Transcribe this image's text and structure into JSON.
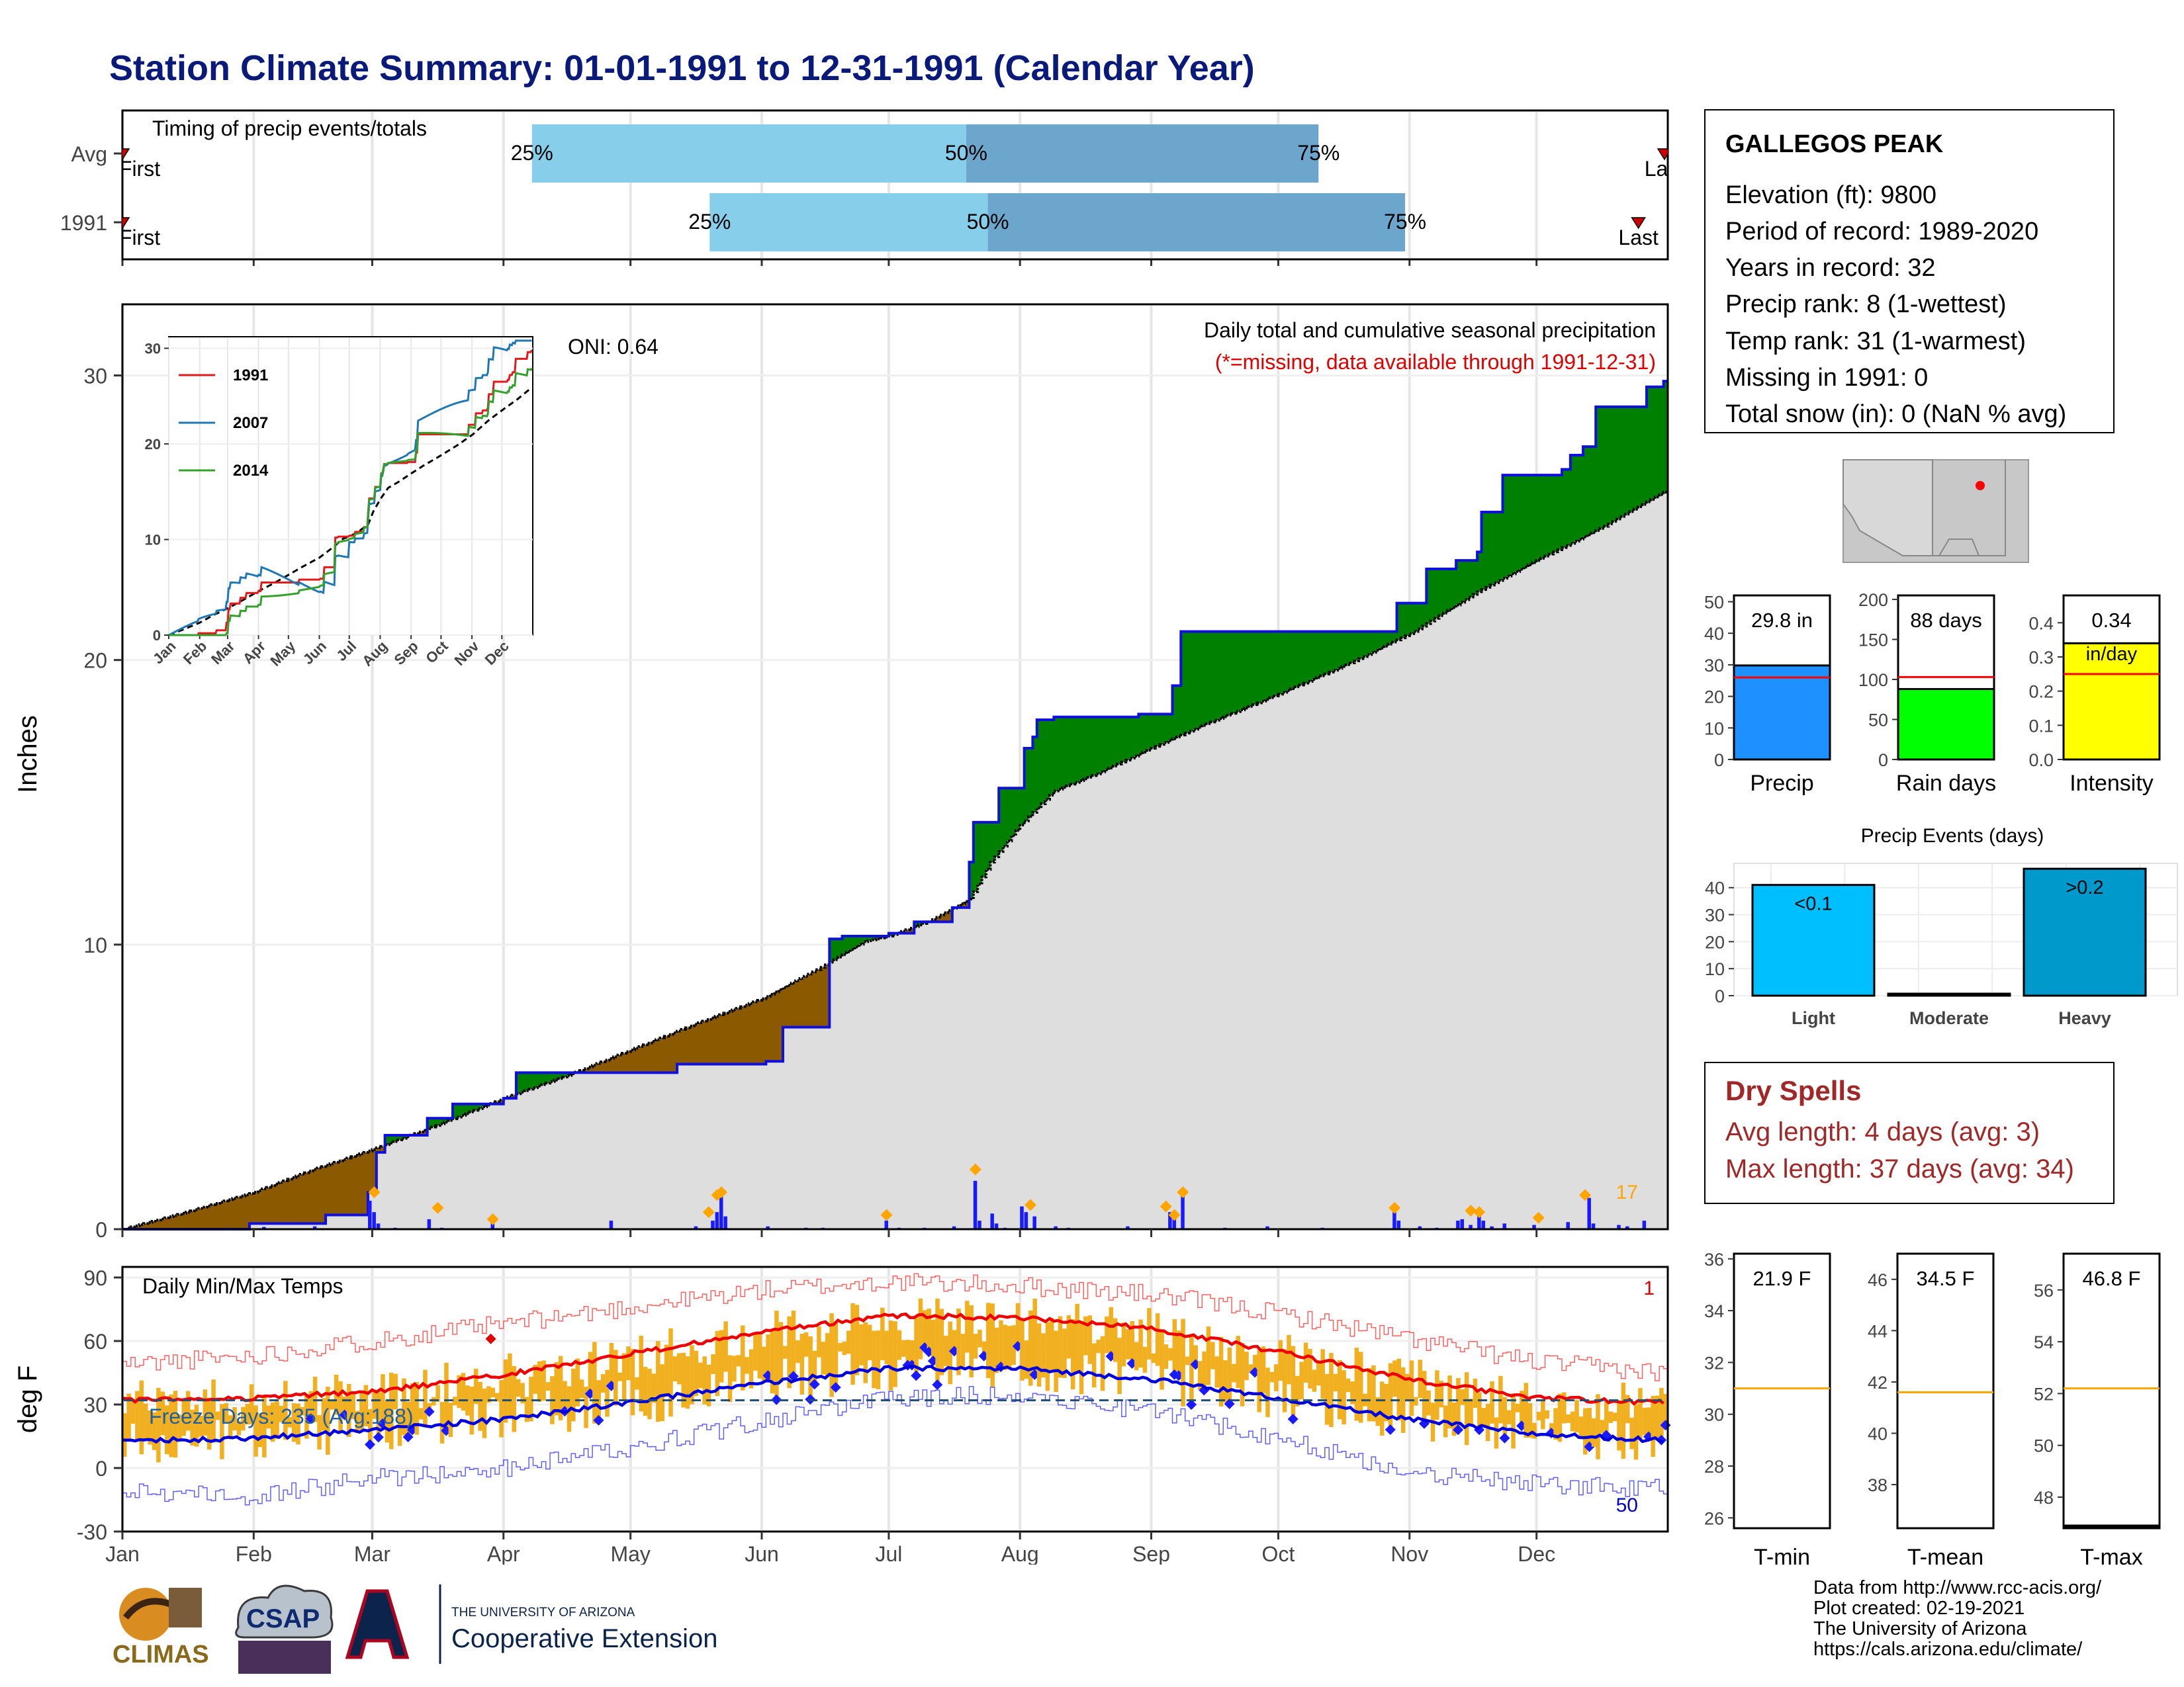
{
  "title": "Station Climate Summary: 01-01-1991 to 12-31-1991 (Calendar Year)",
  "timing": {
    "label": "Timing of precip events/totals",
    "rows": [
      {
        "name": "Avg",
        "p25": 0.265,
        "p50": 0.546,
        "p75": 0.774,
        "first_label": "First",
        "last_label": "Last"
      },
      {
        "name": "1991",
        "p25": 0.38,
        "p50": 0.56,
        "p75": 0.83,
        "first_label": "First",
        "last_label": "Last",
        "last_pos": 0.981
      }
    ],
    "pct_labels": [
      "25%",
      "50%",
      "75%"
    ]
  },
  "station": {
    "name": "GALLEGOS PEAK",
    "lines": [
      "Elevation (ft): 9800",
      "Period of record: 1989-2020",
      "Years in record: 32",
      "Precip rank: 8 (1-wettest)",
      "Temp rank: 31 (1-warmest)",
      "Missing in 1991: 0",
      "Total snow (in): 0 (NaN % avg)"
    ]
  },
  "main_precip": {
    "ylabel": "Inches",
    "yticks": [
      0,
      10,
      20,
      30
    ],
    "ylim": [
      0,
      32.5
    ],
    "title_line1": "Daily total and cumulative seasonal precipitation",
    "title_line2": "(*=missing, data available through 1991-12-31)",
    "oni": "ONI: 0.64",
    "corner_count": "17",
    "months": [
      "Jan",
      "Feb",
      "Mar",
      "Apr",
      "May",
      "Jun",
      "Jul",
      "Aug",
      "Sep",
      "Oct",
      "Nov",
      "Dec"
    ],
    "avg_cum": [
      [
        0,
        0
      ],
      [
        15,
        0.6
      ],
      [
        31,
        1.3
      ],
      [
        45,
        2.1
      ],
      [
        59,
        2.8
      ],
      [
        75,
        3.7
      ],
      [
        90,
        4.6
      ],
      [
        105,
        5.4
      ],
      [
        120,
        6.3
      ],
      [
        135,
        7.2
      ],
      [
        151,
        8.1
      ],
      [
        165,
        9.2
      ],
      [
        175,
        10.1
      ],
      [
        181,
        10.3
      ],
      [
        190,
        10.8
      ],
      [
        200,
        11.6
      ],
      [
        205,
        12.9
      ],
      [
        212,
        14.2
      ],
      [
        220,
        15.4
      ],
      [
        230,
        16.0
      ],
      [
        243,
        16.9
      ],
      [
        255,
        17.7
      ],
      [
        273,
        18.8
      ],
      [
        290,
        19.9
      ],
      [
        305,
        21.0
      ],
      [
        320,
        22.4
      ],
      [
        334,
        23.5
      ],
      [
        350,
        24.7
      ],
      [
        364,
        25.9
      ]
    ],
    "obs_cum": [
      [
        0,
        0
      ],
      [
        30,
        0.2
      ],
      [
        48,
        0.5
      ],
      [
        58,
        1.3
      ],
      [
        60,
        2.7
      ],
      [
        62,
        3.3
      ],
      [
        72,
        3.9
      ],
      [
        78,
        4.4
      ],
      [
        90,
        4.6
      ],
      [
        93,
        5.5
      ],
      [
        128,
        5.5
      ],
      [
        131,
        5.8
      ],
      [
        152,
        5.9
      ],
      [
        156,
        7.1
      ],
      [
        167,
        10.2
      ],
      [
        170,
        10.3
      ],
      [
        181,
        10.4
      ],
      [
        187,
        10.8
      ],
      [
        196,
        11.3
      ],
      [
        200,
        12.9
      ],
      [
        201,
        14.3
      ],
      [
        207,
        15.5
      ],
      [
        213,
        16.9
      ],
      [
        215,
        17.3
      ],
      [
        216,
        17.9
      ],
      [
        220,
        18.0
      ],
      [
        240,
        18.1
      ],
      [
        248,
        19.1
      ],
      [
        250,
        21.0
      ],
      [
        300,
        21.0
      ],
      [
        301,
        22.0
      ],
      [
        308,
        23.2
      ],
      [
        315,
        23.5
      ],
      [
        320,
        23.8
      ],
      [
        321,
        25.2
      ],
      [
        326,
        26.5
      ],
      [
        340,
        26.7
      ],
      [
        342,
        27.2
      ],
      [
        345,
        27.5
      ],
      [
        348,
        28.9
      ],
      [
        360,
        29.6
      ],
      [
        364,
        29.8
      ]
    ],
    "daily_bars": [
      [
        3,
        0.05
      ],
      [
        12,
        0.03
      ],
      [
        24,
        0.05
      ],
      [
        33,
        0.08
      ],
      [
        45,
        0.1
      ],
      [
        58,
        1.0
      ],
      [
        59,
        0.6
      ],
      [
        60,
        0.2
      ],
      [
        64,
        0.05
      ],
      [
        72,
        0.35
      ],
      [
        75,
        0.05
      ],
      [
        87,
        0.2
      ],
      [
        115,
        0.3
      ],
      [
        135,
        0.1
      ],
      [
        139,
        0.3
      ],
      [
        140,
        0.6
      ],
      [
        141,
        1.3
      ],
      [
        142,
        0.45
      ],
      [
        152,
        0.1
      ],
      [
        161,
        0.05
      ],
      [
        165,
        0.05
      ],
      [
        180,
        0.3
      ],
      [
        183,
        0.05
      ],
      [
        189,
        0.05
      ],
      [
        196,
        0.1
      ],
      [
        201,
        1.7
      ],
      [
        202,
        0.3
      ],
      [
        205,
        0.55
      ],
      [
        206,
        0.2
      ],
      [
        208,
        0.05
      ],
      [
        212,
        0.8
      ],
      [
        213,
        0.6
      ],
      [
        215,
        0.45
      ],
      [
        220,
        0.1
      ],
      [
        223,
        0.05
      ],
      [
        237,
        0.1
      ],
      [
        247,
        0.6
      ],
      [
        248,
        0.35
      ],
      [
        250,
        1.3
      ],
      [
        260,
        0.05
      ],
      [
        270,
        0.1
      ],
      [
        283,
        0.05
      ],
      [
        300,
        0.6
      ],
      [
        301,
        0.3
      ],
      [
        306,
        0.1
      ],
      [
        310,
        0.05
      ],
      [
        315,
        0.3
      ],
      [
        316,
        0.35
      ],
      [
        318,
        0.15
      ],
      [
        320,
        0.5
      ],
      [
        321,
        0.3
      ],
      [
        323,
        0.1
      ],
      [
        326,
        0.2
      ],
      [
        333,
        0.15
      ],
      [
        341,
        0.25
      ],
      [
        346,
        1.1
      ],
      [
        347,
        0.2
      ],
      [
        353,
        0.15
      ],
      [
        355,
        0.1
      ],
      [
        359,
        0.3
      ]
    ],
    "flag_days": [
      [
        59,
        1.3
      ],
      [
        74,
        0.75
      ],
      [
        87,
        0.35
      ],
      [
        138,
        0.6
      ],
      [
        140,
        1.2
      ],
      [
        141,
        1.3
      ],
      [
        180,
        0.5
      ],
      [
        201,
        2.1
      ],
      [
        214,
        0.85
      ],
      [
        246,
        0.8
      ],
      [
        248,
        0.5
      ],
      [
        250,
        1.3
      ],
      [
        300,
        0.75
      ],
      [
        318,
        0.65
      ],
      [
        320,
        0.6
      ],
      [
        334,
        0.4
      ],
      [
        345,
        1.2
      ]
    ]
  },
  "inset": {
    "series": [
      {
        "name": "1991",
        "color": "#e31a1c"
      },
      {
        "name": "2007",
        "color": "#1f78b4"
      },
      {
        "name": "2014",
        "color": "#33a02c"
      }
    ],
    "yticks": [
      0,
      10,
      20,
      30
    ],
    "months": [
      "Jan",
      "Feb",
      "Mar",
      "Apr",
      "May",
      "Jun",
      "Jul",
      "Aug",
      "Sep",
      "Oct",
      "Nov",
      "Dec"
    ]
  },
  "temps": {
    "ylabel": "deg F",
    "label": "Daily Min/Max Temps",
    "freeze": "Freeze Days: 235 (Avg:188)",
    "top_count": "1",
    "bottom_count": "50",
    "yticks": [
      -30,
      0,
      30,
      60,
      90
    ],
    "ylim": [
      -30,
      95
    ],
    "freeze_line": 32,
    "avg_max": [
      [
        0,
        32
      ],
      [
        30,
        33
      ],
      [
        59,
        36
      ],
      [
        90,
        44
      ],
      [
        120,
        54
      ],
      [
        151,
        64
      ],
      [
        181,
        72
      ],
      [
        212,
        71
      ],
      [
        243,
        66
      ],
      [
        273,
        55
      ],
      [
        304,
        42
      ],
      [
        334,
        33
      ],
      [
        364,
        31
      ]
    ],
    "avg_min": [
      [
        0,
        13
      ],
      [
        30,
        14
      ],
      [
        59,
        18
      ],
      [
        90,
        23
      ],
      [
        120,
        31
      ],
      [
        151,
        40
      ],
      [
        181,
        47
      ],
      [
        212,
        47
      ],
      [
        243,
        42
      ],
      [
        273,
        33
      ],
      [
        304,
        23
      ],
      [
        334,
        16
      ],
      [
        364,
        13
      ]
    ],
    "rec_max": [
      [
        0,
        49
      ],
      [
        30,
        53
      ],
      [
        59,
        60
      ],
      [
        90,
        68
      ],
      [
        120,
        76
      ],
      [
        151,
        84
      ],
      [
        181,
        88
      ],
      [
        212,
        86
      ],
      [
        243,
        82
      ],
      [
        273,
        73
      ],
      [
        304,
        61
      ],
      [
        334,
        50
      ],
      [
        364,
        45
      ]
    ],
    "rec_min": [
      [
        0,
        -10
      ],
      [
        30,
        -14
      ],
      [
        59,
        -5
      ],
      [
        90,
        0
      ],
      [
        120,
        10
      ],
      [
        151,
        22
      ],
      [
        181,
        33
      ],
      [
        212,
        35
      ],
      [
        243,
        27
      ],
      [
        273,
        14
      ],
      [
        304,
        -2
      ],
      [
        334,
        -8
      ],
      [
        364,
        -10
      ]
    ]
  },
  "summary_bars": [
    {
      "label": "Precip",
      "value": 29.8,
      "avg": 26,
      "value_text": "29.8 in",
      "unit_text": "",
      "ymax": 52,
      "yticks": [
        0,
        10,
        20,
        30,
        40,
        50
      ],
      "color": "#1e90ff"
    },
    {
      "label": "Rain days",
      "value": 88,
      "avg": 103,
      "value_text": "88 days",
      "unit_text": "",
      "ymax": 205,
      "yticks": [
        0,
        50,
        100,
        150,
        200
      ],
      "color": "#00ff00"
    },
    {
      "label": "Intensity",
      "value": 0.34,
      "avg": 0.25,
      "value_text": "0.34",
      "unit_text": "in/day",
      "ymax": 0.48,
      "yticks": [
        0.0,
        0.1,
        0.2,
        0.3,
        0.4
      ],
      "color": "#ffff00"
    }
  ],
  "events": {
    "title": "Precip Events (days)",
    "categories": [
      "Light",
      "Moderate",
      "Heavy"
    ],
    "values": [
      41,
      0,
      47
    ],
    "labels": [
      "<0.1",
      "",
      ">0.2"
    ],
    "yticks": [
      0,
      10,
      20,
      30,
      40
    ],
    "colors": [
      "#00bfff",
      "#0099cc",
      "#0099cc"
    ]
  },
  "dry_spells": {
    "title": "Dry Spells",
    "avg_line": "Avg length: 4 days (avg: 3)",
    "max_line": "Max length: 37 days (avg: 34)"
  },
  "temp_summary": [
    {
      "label": "T-min",
      "value_text": "21.9 F",
      "avg": 31,
      "ymin": 25.6,
      "ymax": 36.2,
      "yticks": [
        26,
        28,
        30,
        32,
        34,
        36
      ]
    },
    {
      "label": "T-mean",
      "value_text": "34.5 F",
      "avg": 41.6,
      "ymin": 36.3,
      "ymax": 47,
      "yticks": [
        38,
        40,
        42,
        44,
        46
      ]
    },
    {
      "label": "T-max",
      "value_text": "46.8 F",
      "avg": 52.2,
      "ymin": 46.8,
      "ymax": 57.4,
      "yticks": [
        48,
        50,
        52,
        54,
        56
      ]
    }
  ],
  "footer": {
    "lines": [
      "Data from http://www.rcc-acis.org/",
      "Plot created: 02-19-2021",
      "The University of Arizona",
      "https://cals.arizona.edu/climate/"
    ],
    "logo_climas": "CLIMAS",
    "logo_csap": "CSAP",
    "ua_small": "THE UNIVERSITY OF ARIZONA",
    "ua_large": "Cooperative Extension"
  }
}
